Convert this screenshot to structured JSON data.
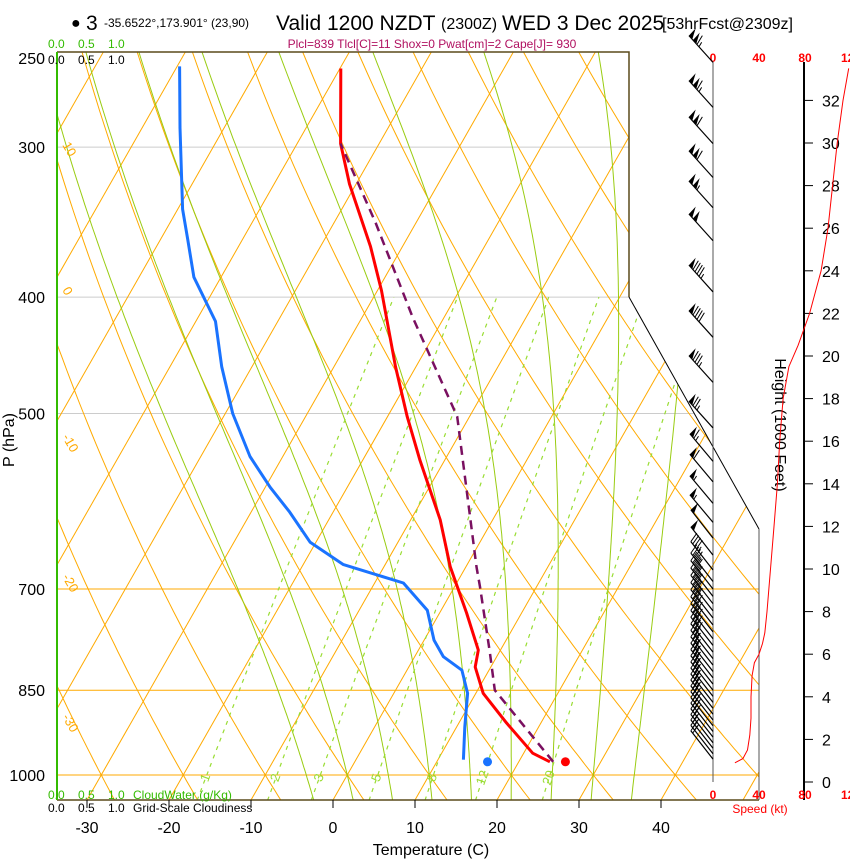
{
  "header": {
    "bullet": "●",
    "station": "3",
    "coords": "-35.6522°,173.901° (23,90)",
    "valid": "Valid 1200 NZDT",
    "utc": "(2300Z)",
    "date": "WED 3 Dec 2025",
    "forecast": "[53hrFcst@2309z]",
    "indices": "Plcl=839 Tlcl[C]=11 Shox=0 Pwat[cm]=2 Cape[J]= 930"
  },
  "colors": {
    "temperature": "#ff0000",
    "dewpoint": "#1a73ff",
    "parcel": "#7a1060",
    "isotherm": "#ffaa00",
    "moist_adiabat": "#99cc11",
    "mixing_ratio": "#99dd33",
    "indices": "#b01060",
    "cloud": "#33bb00",
    "speed": "#ff0000"
  },
  "cloud_axis": {
    "top_green": [
      "0.0",
      "0.5",
      "1.0"
    ],
    "top_black": [
      "0.0",
      "0.5",
      "1.0"
    ],
    "bottom_green": [
      "0.0",
      "0.5",
      "1.0"
    ],
    "bottom_black": [
      "0.0",
      "0.5",
      "1.0"
    ],
    "cloudwater_label": "CloudWater (g/Kg)",
    "cloudiness_label": "Grid-Scale Cloudiness"
  },
  "chart_data": {
    "type": "line",
    "subtype": "skew-T log-P",
    "xlabel": "Temperature (C)",
    "ylabel": "P (hPa)",
    "y2label": "Height (1000 Feet)",
    "xticks": [
      "-30",
      "-20",
      "-10",
      "0",
      "10",
      "20",
      "30",
      "40"
    ],
    "xtick_values": [
      -30,
      -20,
      -10,
      0,
      10,
      20,
      30,
      40
    ],
    "yticks": [
      "250",
      "300",
      "400",
      "500",
      "700",
      "850",
      "1000"
    ],
    "ytick_values": [
      250,
      300,
      400,
      500,
      700,
      850,
      1000
    ],
    "ylim": [
      1050,
      250
    ],
    "isotherms_C": [
      -110,
      -100,
      -90,
      -80,
      -70,
      -60,
      -50,
      -40,
      -30,
      -20,
      -10,
      0,
      10,
      20,
      30,
      40,
      50
    ],
    "dry_adiabats_C": [
      -50,
      -40,
      -30,
      -20,
      -10,
      0,
      10,
      20,
      30,
      40,
      50,
      60,
      70,
      80,
      90,
      100,
      110,
      120,
      130,
      140,
      150
    ],
    "moist_adiabats_C": [
      -5,
      0,
      5,
      10,
      15,
      20,
      25,
      30,
      35
    ],
    "mixing_ratio_gkg": [
      1,
      2,
      3,
      5,
      8,
      12,
      20
    ],
    "mixing_ratio_labels": [
      "1",
      "2",
      "3",
      "5",
      "8",
      "12",
      "20"
    ],
    "left_theta_labels": [
      "10",
      "0",
      "-10",
      "-20",
      "-30"
    ],
    "right_isotherm_labels": [
      "0",
      "10",
      "20",
      "30"
    ],
    "series": [
      {
        "name": "temperature",
        "p": [
          975,
          959,
          905,
          855,
          813,
          787,
          733,
          671,
          613,
          547,
          503,
          457,
          395,
          363,
          322,
          298,
          258
        ],
        "T": [
          23.8,
          21.1,
          15.8,
          10.9,
          8.1,
          7.3,
          3.3,
          -1.9,
          -6.4,
          -13.0,
          -17.6,
          -22.5,
          -29.5,
          -33.9,
          -40.8,
          -44.7,
          -49.9
        ]
      },
      {
        "name": "dewpoint",
        "p": [
          971,
          912,
          855,
          818,
          797,
          772,
          729,
          692,
          668,
          640,
          604,
          576,
          543,
          500,
          457,
          419,
          385,
          358,
          338,
          289,
          257
        ],
        "T": [
          13.1,
          11.0,
          9.0,
          6.7,
          3.5,
          1.2,
          -1.7,
          -6.5,
          -15.1,
          -20.7,
          -25.3,
          -29.4,
          -34.0,
          -39.1,
          -43.7,
          -47.6,
          -53.3,
          -56.7,
          -59.4,
          -65.4,
          -69.7
        ]
      },
      {
        "name": "parcel",
        "p": [
          975,
          850,
          791,
          697,
          671,
          503,
          416,
          347,
          298
        ],
        "T": [
          24.2,
          12.1,
          8.9,
          3.1,
          1.3,
          -11.5,
          -23.8,
          -34.9,
          -44.7
        ]
      }
    ],
    "surface_obs": {
      "p": 975,
      "T": 25.2,
      "Td": 15.7
    },
    "height_axis": {
      "label": "Height (1000 Feet)",
      "ticks": [
        "0",
        "2",
        "4",
        "6",
        "8",
        "10",
        "12",
        "14",
        "16",
        "18",
        "20",
        "22",
        "24",
        "26",
        "28",
        "30",
        "32"
      ],
      "tick_values": [
        0,
        2,
        4,
        6,
        8,
        10,
        12,
        14,
        16,
        18,
        20,
        22,
        24,
        26,
        28,
        30,
        32
      ]
    },
    "speed_axis": {
      "label": "Speed (kt)",
      "ticks": [
        "0",
        "40",
        "80",
        "120"
      ],
      "tick_values": [
        0,
        40,
        80,
        120
      ]
    },
    "wind_speed_profile": {
      "height_kft": [
        0.9,
        1.1,
        1.5,
        2.2,
        3.0,
        4.0,
        5.0,
        5.6,
        6.0,
        6.5,
        7.0,
        8.0,
        10.0,
        12.0,
        14.0,
        16.0,
        18.0,
        19.5,
        20.5,
        22.0,
        24.0,
        26.0,
        28.0,
        30.0,
        32.0,
        33.5
      ],
      "speed_kt": [
        19,
        26,
        30,
        32,
        33,
        33,
        34,
        36,
        40,
        43,
        45,
        47,
        50,
        53,
        56,
        58,
        61,
        66,
        74,
        84,
        94,
        100,
        104,
        108,
        113,
        118
      ]
    },
    "wind_barbs": {
      "p": [
        255,
        278,
        298,
        318,
        337,
        359,
        396,
        432,
        471,
        514,
        548,
        570,
        594,
        616,
        635,
        656,
        675,
        690,
        700,
        710,
        720,
        730,
        740,
        750,
        760,
        770,
        780,
        790,
        800,
        810,
        820,
        830,
        840,
        850,
        860,
        870,
        880,
        890,
        900,
        910,
        920,
        930,
        940,
        950,
        960,
        970
      ],
      "speed_kt": [
        115,
        115,
        110,
        110,
        105,
        100,
        95,
        90,
        85,
        75,
        65,
        60,
        55,
        55,
        50,
        50,
        45,
        45,
        45,
        45,
        45,
        45,
        40,
        40,
        40,
        40,
        40,
        40,
        35,
        35,
        35,
        35,
        35,
        35,
        35,
        35,
        35,
        30,
        30,
        30,
        30,
        30,
        25,
        25,
        25,
        20
      ],
      "dir_deg": [
        318,
        318,
        318,
        318,
        318,
        318,
        318,
        318,
        318,
        318,
        320,
        320,
        320,
        320,
        322,
        322,
        322,
        322,
        322,
        322,
        322,
        322,
        322,
        322,
        322,
        322,
        322,
        322,
        322,
        322,
        322,
        322,
        322,
        322,
        322,
        322,
        322,
        322,
        322,
        322,
        322,
        322,
        322,
        322,
        322,
        322
      ]
    }
  }
}
